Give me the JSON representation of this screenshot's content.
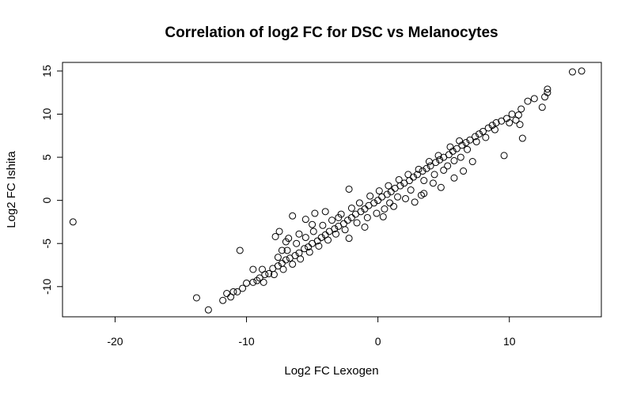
{
  "chart_data": {
    "type": "scatter",
    "title": "Correlation of log2 FC for DSC vs Melanocytes",
    "xlabel": "Log2 FC Lexogen",
    "ylabel": "Log2 FC Ishita",
    "xlim": [
      -24,
      17
    ],
    "ylim": [
      -13.5,
      16
    ],
    "xticks": [
      -20,
      -10,
      0,
      10
    ],
    "yticks": [
      -10,
      -5,
      0,
      5,
      10,
      15
    ],
    "grid": false,
    "legend": "none",
    "marker": "open-circle",
    "colors": {
      "point": "#000000",
      "background": "#ffffff"
    },
    "points": [
      {
        "x": -23.2,
        "y": -2.5
      },
      {
        "x": -13.8,
        "y": -11.3
      },
      {
        "x": -12.9,
        "y": -12.7
      },
      {
        "x": -11.8,
        "y": -11.6
      },
      {
        "x": -11.5,
        "y": -10.8
      },
      {
        "x": -11.2,
        "y": -11.2
      },
      {
        "x": -11.0,
        "y": -10.6
      },
      {
        "x": -10.7,
        "y": -10.6
      },
      {
        "x": -10.3,
        "y": -10.2
      },
      {
        "x": -10.0,
        "y": -9.6
      },
      {
        "x": -10.5,
        "y": -5.8
      },
      {
        "x": -9.5,
        "y": -9.5
      },
      {
        "x": -9.2,
        "y": -9.3
      },
      {
        "x": -9.0,
        "y": -9.0
      },
      {
        "x": -8.6,
        "y": -8.6
      },
      {
        "x": -8.8,
        "y": -8.0
      },
      {
        "x": -8.3,
        "y": -8.5
      },
      {
        "x": -8.0,
        "y": -7.9
      },
      {
        "x": -7.6,
        "y": -7.6
      },
      {
        "x": -7.3,
        "y": -7.3
      },
      {
        "x": -7.0,
        "y": -6.9
      },
      {
        "x": -6.7,
        "y": -6.7
      },
      {
        "x": -6.3,
        "y": -6.4
      },
      {
        "x": -6.0,
        "y": -6.1
      },
      {
        "x": -5.6,
        "y": -5.6
      },
      {
        "x": -5.3,
        "y": -5.4
      },
      {
        "x": -5.0,
        "y": -5.0
      },
      {
        "x": -4.6,
        "y": -4.7
      },
      {
        "x": -4.3,
        "y": -4.3
      },
      {
        "x": -4.0,
        "y": -4.0
      },
      {
        "x": -3.7,
        "y": -3.6
      },
      {
        "x": -3.3,
        "y": -3.3
      },
      {
        "x": -3.0,
        "y": -3.0
      },
      {
        "x": -2.6,
        "y": -2.7
      },
      {
        "x": -2.3,
        "y": -2.3
      },
      {
        "x": -2.0,
        "y": -2.0
      },
      {
        "x": -1.7,
        "y": -1.6
      },
      {
        "x": -1.3,
        "y": -1.3
      },
      {
        "x": -1.0,
        "y": -1.0
      },
      {
        "x": -0.7,
        "y": -0.6
      },
      {
        "x": -0.3,
        "y": -0.3
      },
      {
        "x": 0.0,
        "y": 0.0
      },
      {
        "x": 0.3,
        "y": 0.4
      },
      {
        "x": 0.7,
        "y": 0.7
      },
      {
        "x": 1.0,
        "y": 1.0
      },
      {
        "x": 1.3,
        "y": 1.4
      },
      {
        "x": 1.7,
        "y": 1.7
      },
      {
        "x": 2.0,
        "y": 2.0
      },
      {
        "x": 2.4,
        "y": 2.3
      },
      {
        "x": 2.7,
        "y": 2.7
      },
      {
        "x": 3.0,
        "y": 3.0
      },
      {
        "x": 3.4,
        "y": 3.4
      },
      {
        "x": 3.7,
        "y": 3.7
      },
      {
        "x": 4.0,
        "y": 4.0
      },
      {
        "x": 4.4,
        "y": 4.4
      },
      {
        "x": 4.7,
        "y": 4.7
      },
      {
        "x": 5.0,
        "y": 5.0
      },
      {
        "x": 5.4,
        "y": 5.3
      },
      {
        "x": 5.7,
        "y": 5.7
      },
      {
        "x": 6.0,
        "y": 6.0
      },
      {
        "x": 6.4,
        "y": 6.4
      },
      {
        "x": 6.7,
        "y": 6.7
      },
      {
        "x": 7.0,
        "y": 7.0
      },
      {
        "x": 7.4,
        "y": 7.4
      },
      {
        "x": 7.7,
        "y": 7.7
      },
      {
        "x": 8.0,
        "y": 8.0
      },
      {
        "x": 8.4,
        "y": 8.4
      },
      {
        "x": 8.7,
        "y": 8.7
      },
      {
        "x": 9.0,
        "y": 9.0
      },
      {
        "x": 9.4,
        "y": 9.2
      },
      {
        "x": 9.8,
        "y": 9.5
      },
      {
        "x": 10.2,
        "y": 10.0
      },
      {
        "x": 10.5,
        "y": 9.3
      },
      {
        "x": 10.8,
        "y": 8.8
      },
      {
        "x": 10.9,
        "y": 10.6
      },
      {
        "x": 11.0,
        "y": 7.2
      },
      {
        "x": 11.4,
        "y": 11.5
      },
      {
        "x": 11.9,
        "y": 11.8
      },
      {
        "x": 12.5,
        "y": 10.8
      },
      {
        "x": 12.7,
        "y": 12.0
      },
      {
        "x": 12.9,
        "y": 12.5
      },
      {
        "x": 12.9,
        "y": 12.9
      },
      {
        "x": 14.8,
        "y": 14.9
      },
      {
        "x": 15.5,
        "y": 15.0
      },
      {
        "x": 9.6,
        "y": 5.2
      },
      {
        "x": 10.0,
        "y": 9.0
      },
      {
        "x": 10.7,
        "y": 9.9
      },
      {
        "x": 8.2,
        "y": 7.3
      },
      {
        "x": 8.9,
        "y": 8.2
      },
      {
        "x": 7.5,
        "y": 6.8
      },
      {
        "x": 6.8,
        "y": 5.9
      },
      {
        "x": 6.3,
        "y": 5.0
      },
      {
        "x": 5.8,
        "y": 4.6
      },
      {
        "x": 5.3,
        "y": 4.0
      },
      {
        "x": 5.0,
        "y": 3.5
      },
      {
        "x": 4.3,
        "y": 3.0
      },
      {
        "x": 3.5,
        "y": 2.3
      },
      {
        "x": 3.3,
        "y": 0.6
      },
      {
        "x": 2.5,
        "y": 1.2
      },
      {
        "x": 2.1,
        "y": 0.2
      },
      {
        "x": 1.5,
        "y": 0.4
      },
      {
        "x": 0.9,
        "y": -0.3
      },
      {
        "x": 1.2,
        "y": -0.7
      },
      {
        "x": 0.5,
        "y": -1.0
      },
      {
        "x": -0.1,
        "y": -1.5
      },
      {
        "x": -0.8,
        "y": -2.0
      },
      {
        "x": -1.6,
        "y": -2.6
      },
      {
        "x": -2.5,
        "y": -3.4
      },
      {
        "x": -3.2,
        "y": -3.9
      },
      {
        "x": -3.8,
        "y": -4.6
      },
      {
        "x": -4.5,
        "y": -5.3
      },
      {
        "x": -5.2,
        "y": -6.0
      },
      {
        "x": -5.9,
        "y": -6.8
      },
      {
        "x": -6.5,
        "y": -7.4
      },
      {
        "x": -7.2,
        "y": -8.0
      },
      {
        "x": -7.9,
        "y": -8.6
      },
      {
        "x": -8.7,
        "y": -9.5
      },
      {
        "x": -7.6,
        "y": -6.6
      },
      {
        "x": -6.9,
        "y": -5.8
      },
      {
        "x": -6.2,
        "y": -5.0
      },
      {
        "x": -5.5,
        "y": -4.3
      },
      {
        "x": -4.9,
        "y": -3.6
      },
      {
        "x": -4.2,
        "y": -2.9
      },
      {
        "x": -3.5,
        "y": -2.3
      },
      {
        "x": -2.8,
        "y": -1.6
      },
      {
        "x": -2.0,
        "y": -0.9
      },
      {
        "x": -1.4,
        "y": -0.3
      },
      {
        "x": -0.6,
        "y": 0.5
      },
      {
        "x": 0.1,
        "y": 1.1
      },
      {
        "x": 0.8,
        "y": 1.7
      },
      {
        "x": 1.6,
        "y": 2.4
      },
      {
        "x": 2.3,
        "y": 3.0
      },
      {
        "x": 3.1,
        "y": 3.6
      },
      {
        "x": 3.9,
        "y": 4.5
      },
      {
        "x": 4.6,
        "y": 5.2
      },
      {
        "x": 5.5,
        "y": 6.2
      },
      {
        "x": 6.2,
        "y": 6.9
      },
      {
        "x": -6.5,
        "y": -1.8
      },
      {
        "x": -5.5,
        "y": -2.2
      },
      {
        "x": -4.8,
        "y": -1.5
      },
      {
        "x": -5.0,
        "y": -2.8
      },
      {
        "x": -7.8,
        "y": -4.2
      },
      {
        "x": -7.5,
        "y": -3.6
      },
      {
        "x": -7.0,
        "y": -4.8
      },
      {
        "x": -6.0,
        "y": -3.9
      },
      {
        "x": -4.0,
        "y": -1.3
      },
      {
        "x": -2.2,
        "y": 1.3
      },
      {
        "x": -3.0,
        "y": -2.0
      },
      {
        "x": -9.5,
        "y": -8.0
      },
      {
        "x": -6.8,
        "y": -4.4
      },
      {
        "x": -7.3,
        "y": -5.8
      },
      {
        "x": 2.8,
        "y": -0.2
      },
      {
        "x": 3.5,
        "y": 0.8
      },
      {
        "x": 4.8,
        "y": 1.5
      },
      {
        "x": 5.8,
        "y": 2.6
      },
      {
        "x": 6.5,
        "y": 3.4
      },
      {
        "x": 7.2,
        "y": 4.5
      },
      {
        "x": 4.2,
        "y": 2.0
      },
      {
        "x": 0.4,
        "y": -1.9
      },
      {
        "x": -1.0,
        "y": -3.1
      },
      {
        "x": -2.2,
        "y": -4.4
      }
    ]
  }
}
